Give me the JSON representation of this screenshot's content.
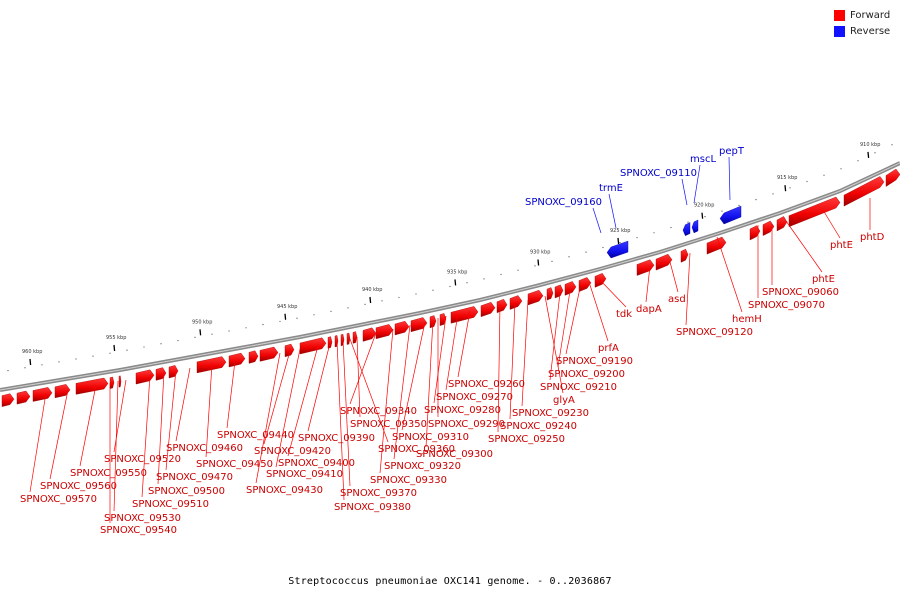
{
  "legend": [
    {
      "label": "Forward",
      "color": "#ff0000"
    },
    {
      "label": "Reverse",
      "color": "#1111ff"
    }
  ],
  "caption": "Streptococcus pneumoniae OXC141 genome. - 0..2036867",
  "colors": {
    "forward": "#ff0000",
    "reverse": "#1111ff",
    "forward_label": "#cc0000",
    "reverse_label": "#0000cc",
    "backbone": "#888888"
  },
  "scale": {
    "tick_labels": [
      "910 kbp",
      "915 kbp",
      "920 kbp",
      "925 kbp",
      "930 kbp",
      "935 kbp",
      "940 kbp",
      "945 kbp",
      "950 kbp",
      "955 kbp",
      "960 kbp"
    ]
  },
  "forward_labels": [
    "phtD",
    "phtE",
    "phtE",
    "SPNOXC_09060",
    "SPNOXC_09070",
    "hemH",
    "SPNOXC_09120",
    "asd",
    "dapA",
    "tdk",
    "prfA",
    "SPNOXC_09190",
    "SPNOXC_09200",
    "SPNOXC_09210",
    "glyA",
    "SPNOXC_09230",
    "SPNOXC_09240",
    "SPNOXC_09250",
    "SPNOXC_09260",
    "SPNOXC_09270",
    "SPNOXC_09280",
    "SPNOXC_09290",
    "SPNOXC_09300",
    "SPNOXC_09310",
    "SPNOXC_09320",
    "SPNOXC_09330",
    "SPNOXC_09340",
    "SPNOXC_09350",
    "SPNOXC_09360",
    "SPNOXC_09370",
    "SPNOXC_09380",
    "SPNOXC_09390",
    "SPNOXC_09400",
    "SPNOXC_09410",
    "SPNOXC_09420",
    "SPNOXC_09430",
    "SPNOXC_09440",
    "SPNOXC_09450",
    "SPNOXC_09460",
    "SPNOXC_09470",
    "SPNOXC_09500",
    "SPNOXC_09510",
    "SPNOXC_09520",
    "SPNOXC_09530",
    "SPNOXC_09540",
    "SPNOXC_09550",
    "SPNOXC_09560",
    "SPNOXC_09570"
  ],
  "reverse_labels": [
    "pepT",
    "mscL",
    "SPNOXC_09110",
    "trmE",
    "SPNOXC_09160"
  ]
}
